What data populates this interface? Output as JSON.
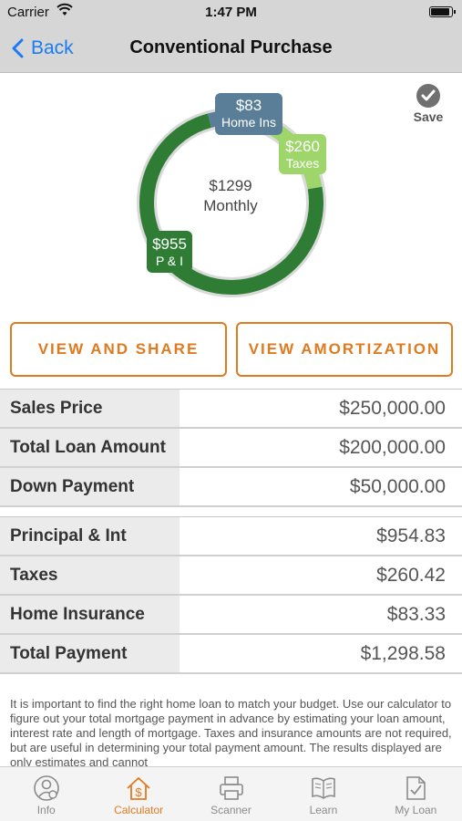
{
  "status_bar": {
    "carrier": "Carrier",
    "time": "1:47 PM"
  },
  "nav": {
    "back_label": "Back",
    "title": "Conventional Purchase"
  },
  "save": {
    "label": "Save"
  },
  "chart_data": {
    "type": "pie",
    "style": "donut",
    "center_amount": "$1299",
    "center_label": "Monthly",
    "series": [
      {
        "name": "P & I",
        "display_amount": "$955",
        "value": 955,
        "color": "#2f7d35"
      },
      {
        "name": "Taxes",
        "display_amount": "$260",
        "value": 260,
        "color": "#9ed66b"
      },
      {
        "name": "Home Ins",
        "display_amount": "$83",
        "value": 83,
        "color": "#5a7e98"
      }
    ],
    "colors": {
      "track": "#d9d9d9"
    }
  },
  "buttons": {
    "view_share": "VIEW AND SHARE",
    "view_amortization": "VIEW AMORTIZATION"
  },
  "loan_table": [
    {
      "label": "Sales Price",
      "value": "$250,000.00"
    },
    {
      "label": "Total Loan Amount",
      "value": "$200,000.00"
    },
    {
      "label": "Down Payment",
      "value": "$50,000.00"
    }
  ],
  "payment_table": [
    {
      "label": "Principal & Int",
      "value": "$954.83"
    },
    {
      "label": "Taxes",
      "value": "$260.42"
    },
    {
      "label": "Home Insurance",
      "value": "$83.33"
    },
    {
      "label": "Total Payment",
      "value": "$1,298.58"
    }
  ],
  "disclaimer": "It is important to find the right home loan to match your budget. Use our calculator to figure out your total mortgage payment in advance by estimating your loan amount, interest rate and length of mortgage. Taxes and insurance amounts are not required, but are useful in determining your total payment amount.  The results displayed are only estimates and cannot",
  "tabs": [
    {
      "label": "Info",
      "icon": "info-person-icon",
      "active": false
    },
    {
      "label": "Calculator",
      "icon": "house-dollar-icon",
      "active": true
    },
    {
      "label": "Scanner",
      "icon": "printer-icon",
      "active": false
    },
    {
      "label": "Learn",
      "icon": "book-icon",
      "active": false
    },
    {
      "label": "My Loan",
      "icon": "document-check-icon",
      "active": false
    }
  ],
  "colors": {
    "accent": "#e07a1f",
    "link": "#1a7cf3"
  }
}
